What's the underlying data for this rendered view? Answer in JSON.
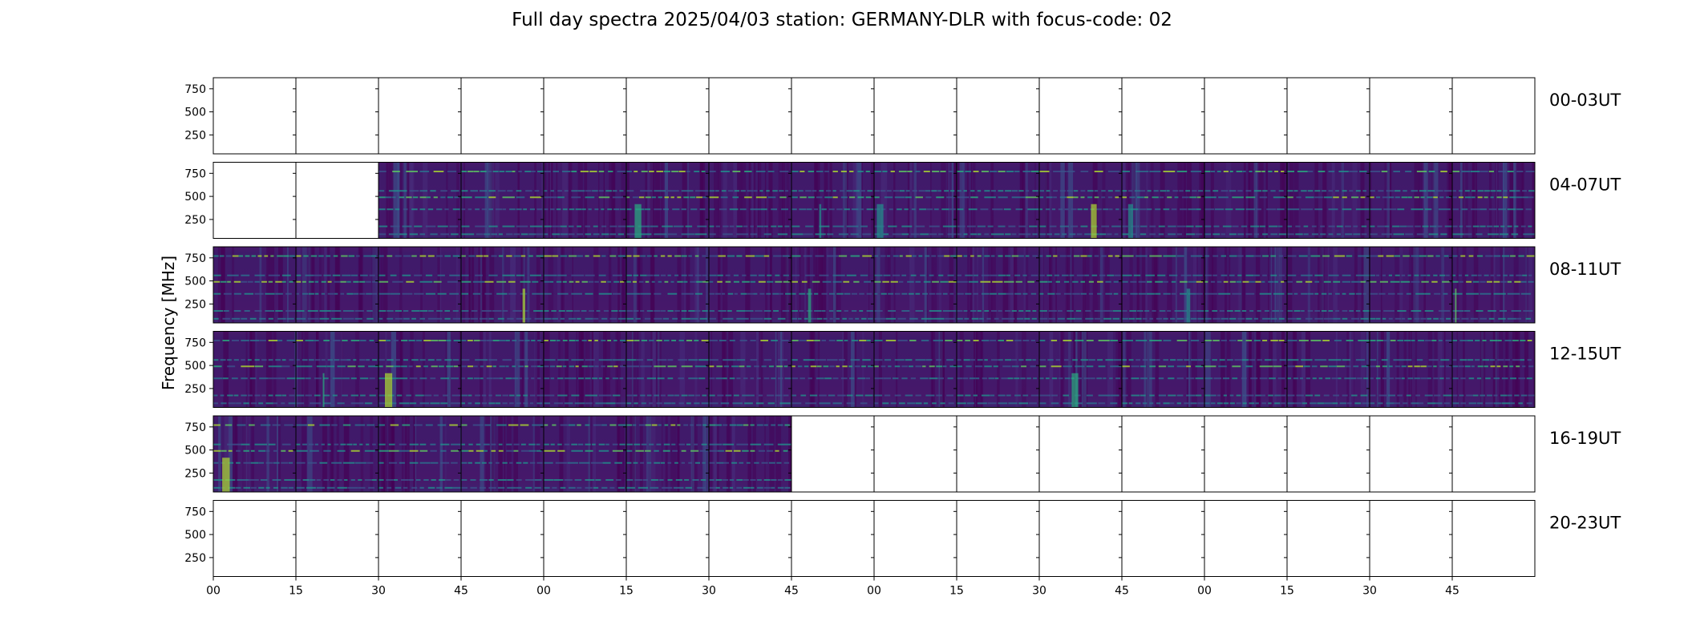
{
  "chart_data": {
    "type": "heatmap",
    "title": "Full day spectra 2025/04/03 station: GERMANY-DLR with focus-code: 02",
    "ylabel": "Frequency [MHz]",
    "y_ticks": [
      250,
      500,
      750
    ],
    "ylim": [
      45,
      870
    ],
    "x_ticks": [
      "00",
      "15",
      "30",
      "45",
      "00",
      "15",
      "30",
      "45",
      "00",
      "15",
      "30",
      "45",
      "00",
      "15",
      "30",
      "45"
    ],
    "panels_per_row": 16,
    "minutes_per_panel": 15,
    "colormap": [
      "#440154",
      "#472d7b",
      "#3b528b",
      "#2c728e",
      "#21918c",
      "#28ae80",
      "#5ec962",
      "#addc30",
      "#fde725"
    ],
    "rows": [
      {
        "label": "00-03UT",
        "data_panels": []
      },
      {
        "label": "04-07UT",
        "data_panels": [
          2,
          3,
          4,
          5,
          6,
          7,
          8,
          9,
          10,
          11,
          12,
          13,
          14,
          15
        ]
      },
      {
        "label": "08-11UT",
        "data_panels": [
          0,
          1,
          2,
          3,
          4,
          5,
          6,
          7,
          8,
          9,
          10,
          11,
          12,
          13,
          14,
          15
        ]
      },
      {
        "label": "12-15UT",
        "data_panels": [
          0,
          1,
          2,
          3,
          4,
          5,
          6,
          7,
          8,
          9,
          10,
          11,
          12,
          13,
          14,
          15
        ]
      },
      {
        "label": "16-19UT",
        "data_panels": [
          0,
          1,
          2,
          3,
          4,
          5,
          6
        ]
      },
      {
        "label": "20-23UT",
        "data_panels": []
      }
    ],
    "persistent_bands_mhz": [
      90,
      175,
      360,
      490,
      560,
      770
    ]
  }
}
